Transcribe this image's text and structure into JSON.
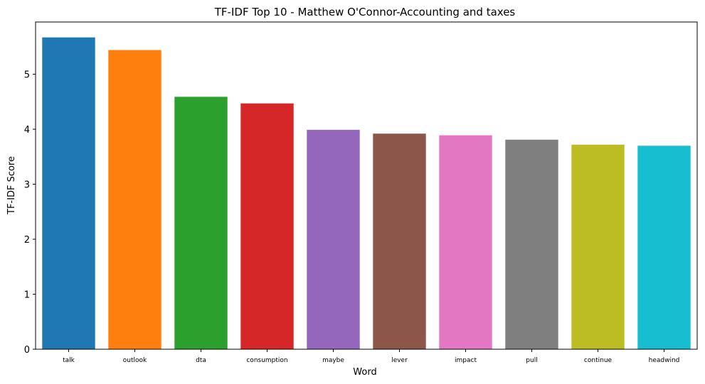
{
  "chart_data": {
    "type": "bar",
    "title": "TF-IDF Top 10 - Matthew O'Connor-Accounting and taxes",
    "xlabel": "Word",
    "ylabel": "TF-IDF Score",
    "categories": [
      "talk",
      "outlook",
      "dta",
      "consumption",
      "maybe",
      "lever",
      "impact",
      "pull",
      "continue",
      "headwind"
    ],
    "values": [
      5.67,
      5.44,
      4.59,
      4.47,
      3.99,
      3.92,
      3.89,
      3.81,
      3.72,
      3.7
    ],
    "colors": [
      "#1f77b4",
      "#ff7f0e",
      "#2ca02c",
      "#d62728",
      "#9467bd",
      "#8c564b",
      "#e377c2",
      "#7f7f7f",
      "#bcbd22",
      "#17becf"
    ],
    "ylim": [
      0,
      5.95
    ],
    "yticks": [
      0,
      1,
      2,
      3,
      4,
      5
    ],
    "grid": false
  }
}
